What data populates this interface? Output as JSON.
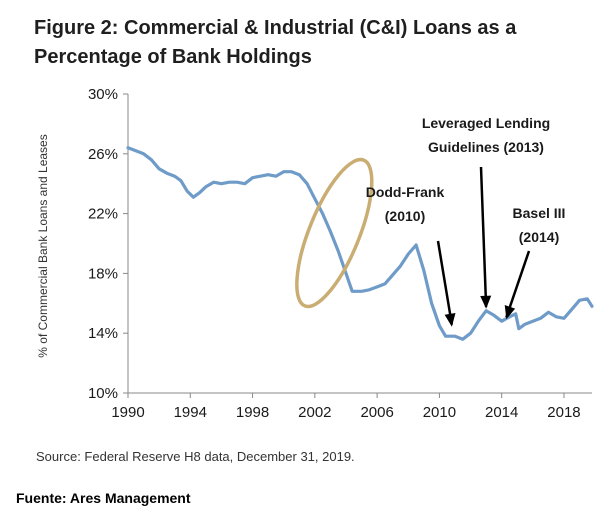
{
  "title_lines": [
    "Figure 2: Commercial & Industrial (C&I) Loans as a",
    "Percentage of Bank Holdings"
  ],
  "source": "Source: Federal Reserve H8 data, December 31, 2019.",
  "credit": "Fuente: Ares Management",
  "colors": {
    "line": "#6f9bc8",
    "ellipse": "#c9ad73",
    "arrow": "#000000",
    "text": "#333333"
  },
  "chart_data": {
    "type": "line",
    "ylabel": "% of Commercial Bank Loans and Leases",
    "xlabel": "",
    "xlim": [
      1990,
      2019.8
    ],
    "ylim": [
      10,
      30
    ],
    "x_ticks": [
      "1990",
      "1994",
      "1998",
      "2002",
      "2006",
      "2010",
      "2014",
      "2018"
    ],
    "y_ticks": [
      "10%",
      "14%",
      "18%",
      "22%",
      "26%",
      "30%"
    ],
    "grid": false,
    "series": [
      {
        "values": [
          [
            1990.0,
            26.4
          ],
          [
            1990.5,
            26.2
          ],
          [
            1991.0,
            26.0
          ],
          [
            1991.5,
            25.6
          ],
          [
            1992.0,
            25.0
          ],
          [
            1992.5,
            24.7
          ],
          [
            1993.0,
            24.5
          ],
          [
            1993.4,
            24.2
          ],
          [
            1993.8,
            23.5
          ],
          [
            1994.2,
            23.1
          ],
          [
            1994.6,
            23.4
          ],
          [
            1995.0,
            23.8
          ],
          [
            1995.5,
            24.1
          ],
          [
            1996.0,
            24.0
          ],
          [
            1996.5,
            24.1
          ],
          [
            1997.0,
            24.1
          ],
          [
            1997.5,
            24.0
          ],
          [
            1998.0,
            24.4
          ],
          [
            1998.5,
            24.5
          ],
          [
            1999.0,
            24.6
          ],
          [
            1999.5,
            24.5
          ],
          [
            2000.0,
            24.8
          ],
          [
            2000.5,
            24.8
          ],
          [
            2001.0,
            24.6
          ],
          [
            2001.5,
            24.0
          ],
          [
            2002.0,
            23.0
          ],
          [
            2002.5,
            22.0
          ],
          [
            2003.0,
            20.8
          ],
          [
            2003.5,
            19.5
          ],
          [
            2004.0,
            18.0
          ],
          [
            2004.4,
            16.8
          ],
          [
            2005.0,
            16.8
          ],
          [
            2005.5,
            16.9
          ],
          [
            2006.0,
            17.1
          ],
          [
            2006.5,
            17.3
          ],
          [
            2007.0,
            17.9
          ],
          [
            2007.5,
            18.5
          ],
          [
            2008.0,
            19.3
          ],
          [
            2008.5,
            19.9
          ],
          [
            2009.0,
            18.2
          ],
          [
            2009.5,
            16.0
          ],
          [
            2010.0,
            14.5
          ],
          [
            2010.4,
            13.8
          ],
          [
            2011.0,
            13.8
          ],
          [
            2011.5,
            13.6
          ],
          [
            2012.0,
            14.0
          ],
          [
            2012.5,
            14.8
          ],
          [
            2013.0,
            15.5
          ],
          [
            2013.5,
            15.2
          ],
          [
            2014.0,
            14.8
          ],
          [
            2014.5,
            15.1
          ],
          [
            2014.9,
            15.3
          ],
          [
            2015.1,
            14.3
          ],
          [
            2015.5,
            14.6
          ],
          [
            2016.0,
            14.8
          ],
          [
            2016.5,
            15.0
          ],
          [
            2017.0,
            15.4
          ],
          [
            2017.5,
            15.1
          ],
          [
            2018.0,
            15.0
          ],
          [
            2018.5,
            15.6
          ],
          [
            2019.0,
            16.2
          ],
          [
            2019.5,
            16.3
          ],
          [
            2019.8,
            15.8
          ]
        ]
      }
    ],
    "annotations": [
      {
        "lines": [
          "Leveraged Lending",
          "Guidelines (2013)"
        ],
        "x": 2013,
        "y": 15.5
      },
      {
        "lines": [
          "Dodd-Frank",
          "(2010)"
        ],
        "x": 2010.8,
        "y": 14.3
      },
      {
        "lines": [
          "Basel III",
          "(2014)"
        ],
        "x": 2014.3,
        "y": 14.8
      }
    ],
    "highlight": {
      "shape": "ellipse",
      "x_range": [
        2001.5,
        2005.0
      ],
      "y_range": [
        16.2,
        25.2
      ]
    }
  }
}
